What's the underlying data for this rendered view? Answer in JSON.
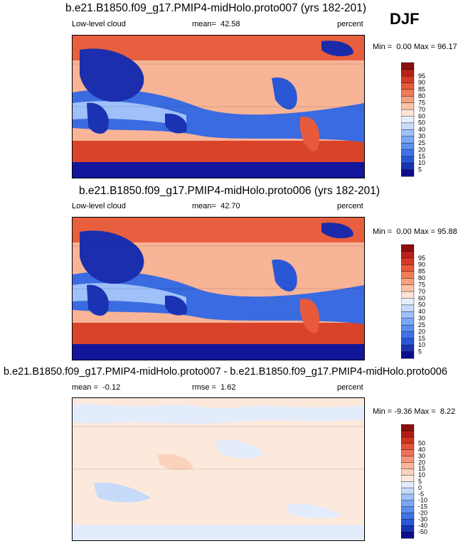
{
  "season": "DJF",
  "palettes": {
    "abs": [
      "#0d0d8c",
      "#1a33b3",
      "#2a57d6",
      "#3f73e8",
      "#5c8ef0",
      "#7ba7f5",
      "#9fc0f8",
      "#c6daf9",
      "#e5eefb",
      "#fde3d6",
      "#f9c3a8",
      "#f5a07e",
      "#f07c58",
      "#e85a3c",
      "#d63a24",
      "#b8221a",
      "#8c0f0f"
    ],
    "diff": [
      "#0d0d8c",
      "#1a33b3",
      "#2a57d6",
      "#3f73e8",
      "#5c8ef0",
      "#7ba7f5",
      "#9fc0f8",
      "#c6daf9",
      "#e3ecfb",
      "#fde9dc",
      "#fbd2bc",
      "#f9b699",
      "#f5957a",
      "#f07358",
      "#e5543a",
      "#d13522",
      "#b41d15",
      "#8c0f0f"
    ]
  },
  "panels": [
    {
      "id": "p1",
      "title": "b.e21.B1850.f09_g17.PMIP4-midHolo.proto007 (yrs 182-201)",
      "variable": "Low-level cloud",
      "mean_label": "mean=",
      "mean_value": "42.58",
      "units": "percent",
      "min_label": "Min =",
      "min_value": "0.00",
      "max_label": "Max =",
      "max_value": "96.17",
      "palette": "abs"
    },
    {
      "id": "p2",
      "title": "b.e21.B1850.f09_g17.PMIP4-midHolo.proto006 (yrs 182-201)",
      "variable": "Low-level cloud",
      "mean_label": "mean=",
      "mean_value": "42.70",
      "units": "percent",
      "min_label": "Min =",
      "min_value": "0.00",
      "max_label": "Max =",
      "max_value": "95.88",
      "palette": "abs"
    },
    {
      "id": "p3",
      "title": "b.e21.B1850.f09_g17.PMIP4-midHolo.proto007 - b.e21.B1850.f09_g17.PMIP4-midHolo.proto006",
      "mean_label": "mean =",
      "mean_value": "-0.12",
      "rmse_label": "rmse =",
      "rmse_value": "1.62",
      "units": "percent",
      "min_label": "Min =",
      "min_value": "-9.36",
      "max_label": "Max =",
      "max_value": "8.22",
      "palette": "diff"
    }
  ],
  "chart_data": [
    {
      "type": "heatmap",
      "title": "b.e21.B1850.f09_g17.PMIP4-midHolo.proto007 (yrs 182-201)",
      "variable": "Low-level cloud",
      "units": "percent",
      "mean": 42.58,
      "min": 0.0,
      "max": 96.17,
      "colorbar_levels": [
        5,
        10,
        15,
        20,
        25,
        30,
        40,
        50,
        60,
        70,
        75,
        80,
        85,
        90,
        95
      ]
    },
    {
      "type": "heatmap",
      "title": "b.e21.B1850.f09_g17.PMIP4-midHolo.proto006 (yrs 182-201)",
      "variable": "Low-level cloud",
      "units": "percent",
      "mean": 42.7,
      "min": 0.0,
      "max": 95.88,
      "colorbar_levels": [
        5,
        10,
        15,
        20,
        25,
        30,
        40,
        50,
        60,
        70,
        75,
        80,
        85,
        90,
        95
      ]
    },
    {
      "type": "heatmap",
      "title": "b.e21.B1850.f09_g17.PMIP4-midHolo.proto007 - b.e21.B1850.f09_g17.PMIP4-midHolo.proto006",
      "units": "percent",
      "mean": -0.12,
      "rmse": 1.62,
      "min": -9.36,
      "max": 8.22,
      "colorbar_levels": [
        -50,
        -40,
        -30,
        -20,
        -15,
        -10,
        -5,
        0,
        5,
        10,
        15,
        20,
        30,
        40,
        50
      ]
    }
  ]
}
